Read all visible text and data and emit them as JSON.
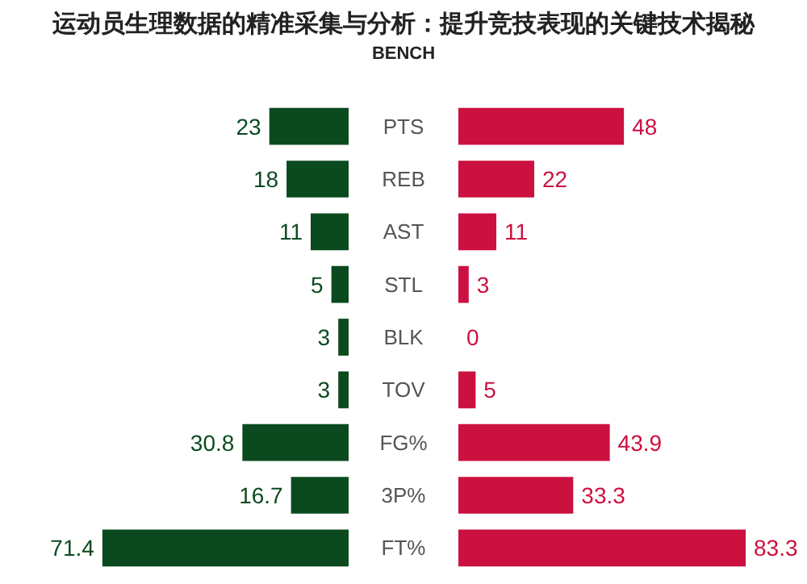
{
  "chart_data": [
    {
      "type": "bar",
      "title": "运动员生理数据的精准采集与分析：提升竞技表现的关键技术揭秘",
      "subtitle": "BENCH",
      "orientation": "horizontal",
      "categories": [
        "PTS",
        "REB",
        "AST",
        "STL",
        "BLK",
        "TOV",
        "FG%",
        "3P%",
        "FT%"
      ],
      "series": [
        {
          "color": "#0b4a1f",
          "values": [
            23,
            18,
            11,
            5,
            3,
            3,
            30.8,
            16.7,
            71.4
          ]
        }
      ],
      "data_labels": true,
      "tick_labels": "y"
    },
    {
      "type": "bar",
      "orientation": "horizontal",
      "categories": [
        null,
        null,
        null,
        null,
        null,
        null,
        null,
        null,
        null
      ],
      "series": [
        {
          "color": "#cc1040",
          "values": [
            48,
            22,
            11,
            3,
            0,
            5,
            43.9,
            33.3,
            83.3
          ]
        }
      ],
      "data_labels": true,
      "tick_labels": false
    }
  ]
}
